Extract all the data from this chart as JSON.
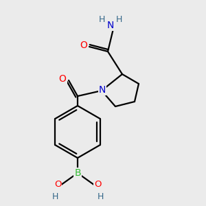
{
  "bg_color": "#ebebeb",
  "atom_colors": {
    "C": "#000000",
    "N": "#0000cc",
    "O": "#ff0000",
    "B": "#33bb33",
    "H": "#336688"
  },
  "bond_color": "#000000",
  "bond_width": 1.6,
  "fig_size": [
    3.0,
    3.0
  ],
  "dpi": 100
}
